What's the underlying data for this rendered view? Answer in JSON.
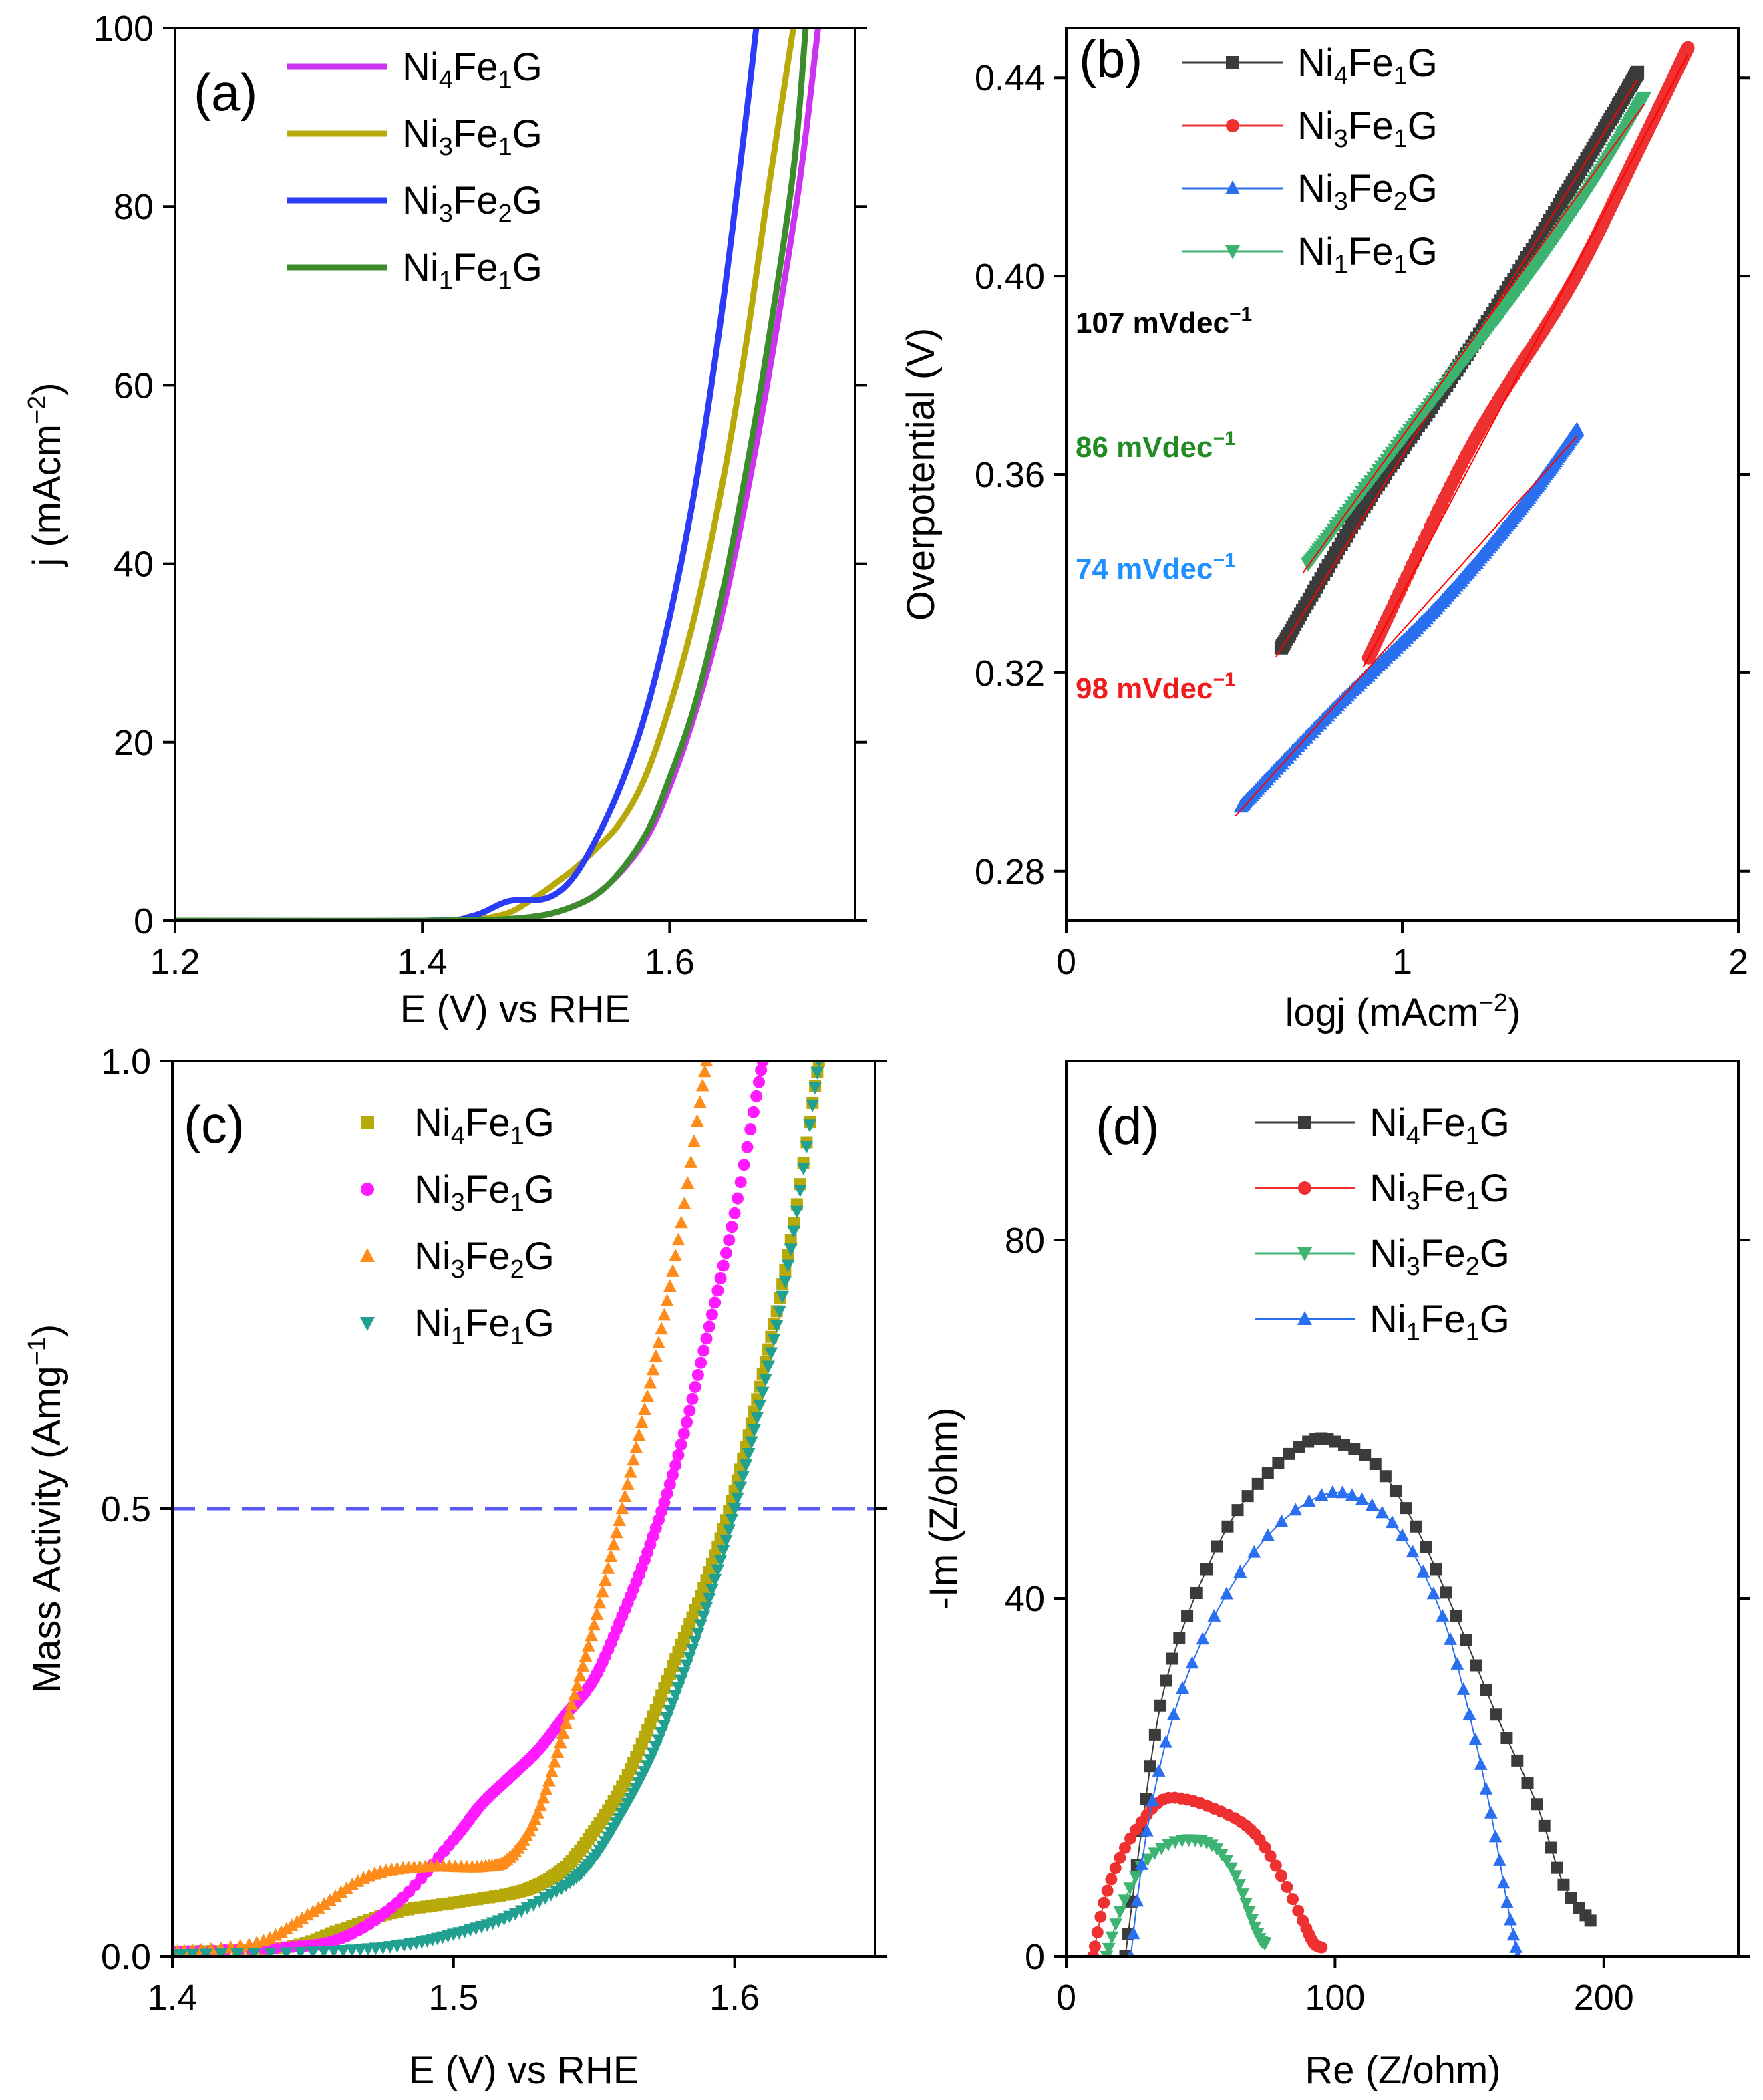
{
  "figure": {
    "panels": [
      "(a)",
      "(b)",
      "(c)",
      "(d)"
    ]
  },
  "chart_data": [
    {
      "id": "a",
      "type": "line",
      "panel_label": "(a)",
      "xlabel": "E (V) vs RHE",
      "ylabel": "j (mAcm−2)",
      "ylabel_parts": {
        "base": "j (mAcm",
        "sup": "−2",
        "tail": ")"
      },
      "xlim": [
        1.2,
        1.75
      ],
      "ylim": [
        0,
        100
      ],
      "x_ticks": [
        1.2,
        1.4,
        1.6
      ],
      "x_tick_labels": [
        "1.2",
        "1.4",
        "1.6"
      ],
      "y_ticks": [
        0,
        20,
        40,
        60,
        80,
        100
      ],
      "y_tick_labels": [
        "0",
        "20",
        "40",
        "60",
        "80",
        "100"
      ],
      "legend_position": "top-left",
      "series": [
        {
          "name": "Ni4Fe1G",
          "label_parts": [
            "Ni",
            "4",
            "Fe",
            "1",
            "G"
          ],
          "color": "#cc33ee",
          "x": [
            1.2,
            1.4,
            1.48,
            1.52,
            1.55,
            1.58,
            1.6,
            1.62,
            1.64,
            1.66,
            1.68,
            1.7,
            1.71,
            1.72
          ],
          "values": [
            0,
            0,
            0.3,
            1.5,
            4,
            9,
            15,
            23,
            33,
            46,
            61,
            78,
            88,
            100
          ]
        },
        {
          "name": "Ni3Fe1G",
          "label_parts": [
            "Ni",
            "3",
            "Fe",
            "1",
            "G"
          ],
          "color": "#b8a90a",
          "x": [
            1.2,
            1.4,
            1.46,
            1.49,
            1.52,
            1.54,
            1.56,
            1.58,
            1.6,
            1.62,
            1.64,
            1.66,
            1.68,
            1.7
          ],
          "values": [
            0,
            0,
            0.5,
            2.5,
            5.5,
            8,
            11,
            16,
            24,
            34,
            47,
            63,
            82,
            100
          ]
        },
        {
          "name": "Ni3Fe2G",
          "label_parts": [
            "Ni",
            "3",
            "Fe",
            "2",
            "G"
          ],
          "color": "#2a3cf5",
          "x": [
            1.2,
            1.4,
            1.44,
            1.47,
            1.5,
            1.52,
            1.54,
            1.56,
            1.58,
            1.6,
            1.62,
            1.64,
            1.66,
            1.67
          ],
          "values": [
            0,
            0,
            0.5,
            2.2,
            2.5,
            4.5,
            9,
            15,
            23,
            34,
            48,
            66,
            88,
            100
          ]
        },
        {
          "name": "Ni1Fe1G",
          "label_parts": [
            "Ni",
            "1",
            "Fe",
            "1",
            "G"
          ],
          "color": "#3c8c2e",
          "x": [
            1.2,
            1.4,
            1.48,
            1.52,
            1.55,
            1.58,
            1.6,
            1.62,
            1.64,
            1.66,
            1.68,
            1.7,
            1.71
          ],
          "values": [
            0,
            0,
            0.3,
            1.5,
            4,
            9.5,
            16,
            24,
            35,
            49,
            65,
            84,
            100
          ]
        }
      ]
    },
    {
      "id": "b",
      "type": "scatter",
      "panel_label": "(b)",
      "xlabel": "logj (mAcm−2)",
      "xlabel_parts": {
        "base": "logj (mAcm",
        "sup": "−2",
        "tail": ")"
      },
      "ylabel": "Overpotential (V)",
      "xlim": [
        0,
        2
      ],
      "ylim": [
        0.27,
        0.45
      ],
      "x_ticks": [
        0,
        1,
        2
      ],
      "x_tick_labels": [
        "0",
        "1",
        "2"
      ],
      "y_ticks": [
        0.28,
        0.32,
        0.36,
        0.4,
        0.44
      ],
      "y_tick_labels": [
        "0.28",
        "0.32",
        "0.36",
        "0.40",
        "0.44"
      ],
      "legend_position": "top-right",
      "annotations": [
        {
          "text": "107 mVdec",
          "sup": "−1",
          "color": "#000000"
        },
        {
          "text": "86 mVdec",
          "sup": "−1",
          "color": "#238b23"
        },
        {
          "text": "74 mVdec",
          "sup": "−1",
          "color": "#1e90ff"
        },
        {
          "text": "98 mVdec",
          "sup": "−1",
          "color": "#ee1c1c"
        }
      ],
      "series": [
        {
          "name": "Ni4Fe1G",
          "label_parts": [
            "Ni",
            "4",
            "Fe",
            "1",
            "G"
          ],
          "color": "#3b3b3b",
          "marker": "square",
          "x": [
            0.64,
            0.9,
            1.2,
            1.5,
            1.7
          ],
          "values": [
            0.325,
            0.355,
            0.385,
            0.418,
            0.441
          ]
        },
        {
          "name": "Ni3Fe1G",
          "label_parts": [
            "Ni",
            "3",
            "Fe",
            "1",
            "G"
          ],
          "color": "#ee3030",
          "marker": "circle",
          "x": [
            0.9,
            1.2,
            1.5,
            1.7,
            1.85
          ],
          "values": [
            0.323,
            0.365,
            0.398,
            0.425,
            0.446
          ]
        },
        {
          "name": "Ni3Fe2G",
          "label_parts": [
            "Ni",
            "3",
            "Fe",
            "2",
            "G"
          ],
          "color": "#2a6ff0",
          "marker": "triangle-up",
          "x": [
            0.52,
            0.8,
            1.1,
            1.35,
            1.52
          ],
          "values": [
            0.293,
            0.313,
            0.333,
            0.353,
            0.369
          ]
        },
        {
          "name": "Ni1Fe1G",
          "label_parts": [
            "Ni",
            "1",
            "Fe",
            "1",
            "G"
          ],
          "color": "#3cb371",
          "marker": "triangle-down",
          "x": [
            0.72,
            1.0,
            1.3,
            1.55,
            1.72
          ],
          "values": [
            0.342,
            0.367,
            0.393,
            0.417,
            0.436
          ]
        }
      ]
    },
    {
      "id": "c",
      "type": "scatter",
      "panel_label": "(c)",
      "xlabel": "E (V) vs RHE",
      "ylabel": "Mass Activity (Amg−1)",
      "ylabel_parts": {
        "base": "Mass Activity (Amg",
        "sup": "−1",
        "tail": ")"
      },
      "xlim": [
        1.4,
        1.65
      ],
      "ylim": [
        0,
        1.0
      ],
      "x_ticks": [
        1.4,
        1.5,
        1.6
      ],
      "x_tick_labels": [
        "1.4",
        "1.5",
        "1.6"
      ],
      "y_ticks": [
        0,
        0.5,
        1.0
      ],
      "y_tick_labels": [
        "0.0",
        "0.5",
        "1.0"
      ],
      "reference_line": {
        "y": 0.5,
        "style": "dashed",
        "color": "#5a5af0"
      },
      "legend_position": "top-right",
      "series": [
        {
          "name": "Ni4Fe1G",
          "label_parts": [
            "Ni",
            "4",
            "Fe",
            "1",
            "G"
          ],
          "color": "#b8a90a",
          "marker": "square",
          "x": [
            1.4,
            1.44,
            1.46,
            1.48,
            1.5,
            1.52,
            1.53,
            1.54,
            1.55,
            1.56,
            1.57,
            1.58,
            1.59,
            1.6,
            1.61,
            1.62,
            1.63
          ],
          "values": [
            0.005,
            0.01,
            0.03,
            0.05,
            0.06,
            0.07,
            0.08,
            0.1,
            0.14,
            0.19,
            0.26,
            0.34,
            0.42,
            0.52,
            0.65,
            0.8,
            1.0
          ]
        },
        {
          "name": "Ni3Fe1G",
          "label_parts": [
            "Ni",
            "3",
            "Fe",
            "1",
            "G"
          ],
          "color": "#ff1aff",
          "marker": "circle",
          "x": [
            1.4,
            1.44,
            1.46,
            1.48,
            1.5,
            1.51,
            1.52,
            1.53,
            1.54,
            1.55,
            1.56,
            1.57,
            1.58,
            1.59,
            1.6,
            1.61
          ],
          "values": [
            0.005,
            0.01,
            0.02,
            0.06,
            0.13,
            0.17,
            0.2,
            0.23,
            0.27,
            0.31,
            0.38,
            0.46,
            0.56,
            0.69,
            0.83,
            1.0
          ]
        },
        {
          "name": "Ni3Fe2G",
          "label_parts": [
            "Ni",
            "3",
            "Fe",
            "2",
            "G"
          ],
          "color": "#ff8c1a",
          "marker": "triangle-up",
          "x": [
            1.4,
            1.43,
            1.45,
            1.47,
            1.49,
            1.51,
            1.52,
            1.53,
            1.54,
            1.55,
            1.56,
            1.57,
            1.58,
            1.59
          ],
          "values": [
            0.005,
            0.015,
            0.05,
            0.09,
            0.1,
            0.1,
            0.11,
            0.16,
            0.26,
            0.37,
            0.5,
            0.64,
            0.8,
            1.0
          ]
        },
        {
          "name": "Ni1Fe1G",
          "label_parts": [
            "Ni",
            "1",
            "Fe",
            "1",
            "G"
          ],
          "color": "#20a090",
          "marker": "triangle-down",
          "x": [
            1.4,
            1.45,
            1.48,
            1.5,
            1.52,
            1.54,
            1.55,
            1.56,
            1.57,
            1.58,
            1.59,
            1.6,
            1.61,
            1.62,
            1.63
          ],
          "values": [
            0.002,
            0.005,
            0.012,
            0.025,
            0.045,
            0.08,
            0.11,
            0.16,
            0.22,
            0.3,
            0.39,
            0.5,
            0.63,
            0.79,
            1.0
          ]
        }
      ]
    },
    {
      "id": "d",
      "type": "scatter",
      "panel_label": "(d)",
      "xlabel": "Re (Z/ohm)",
      "ylabel": "-Im (Z/ohm)",
      "xlim": [
        0,
        250
      ],
      "ylim": [
        0,
        100
      ],
      "x_ticks": [
        0,
        100,
        200
      ],
      "x_tick_labels": [
        "0",
        "100",
        "200"
      ],
      "y_ticks": [
        0,
        40,
        80
      ],
      "y_tick_labels": [
        "0",
        "40",
        "80"
      ],
      "legend_position": "top-center",
      "series": [
        {
          "name": "Ni4Fe1G",
          "label_parts": [
            "Ni",
            "4",
            "Fe",
            "1",
            "G"
          ],
          "color": "#3b3b3b",
          "marker": "square",
          "x": [
            22,
            28,
            35,
            45,
            60,
            75,
            90,
            100,
            115,
            130,
            145,
            160,
            175,
            185,
            195
          ],
          "values": [
            0,
            14,
            28,
            38,
            48,
            54,
            57.5,
            57.5,
            55,
            48,
            38,
            27,
            17,
            8,
            4
          ]
        },
        {
          "name": "Ni3Fe1G",
          "label_parts": [
            "Ni",
            "3",
            "Fe",
            "1",
            "G"
          ],
          "color": "#ee3030",
          "marker": "circle",
          "x": [
            10,
            14,
            20,
            28,
            36,
            45,
            55,
            65,
            72,
            80,
            88,
            92,
            95
          ],
          "values": [
            0,
            6,
            11,
            15,
            17.5,
            17.5,
            16.5,
            15,
            13,
            9,
            4,
            1.5,
            1
          ]
        },
        {
          "name": "Ni3Fe2G",
          "label_parts": [
            "Ni",
            "3",
            "Fe",
            "2",
            "G"
          ],
          "color": "#3cb371",
          "marker": "triangle-down",
          "x": [
            15,
            20,
            28,
            38,
            48,
            56,
            63,
            68,
            72,
            74
          ],
          "values": [
            0,
            5,
            10,
            12.5,
            13,
            12,
            9,
            5,
            2,
            1.5
          ]
        },
        {
          "name": "Ni1Fe1G",
          "label_parts": [
            "Ni",
            "1",
            "Fe",
            "1",
            "G"
          ],
          "color": "#2a6ff0",
          "marker": "triangle-up",
          "x": [
            24,
            30,
            40,
            55,
            75,
            95,
            110,
            125,
            140,
            150,
            158,
            164,
            168
          ],
          "values": [
            0,
            14,
            27,
            38,
            47,
            51.5,
            51,
            47,
            38,
            27,
            16,
            6,
            0
          ]
        }
      ]
    }
  ]
}
